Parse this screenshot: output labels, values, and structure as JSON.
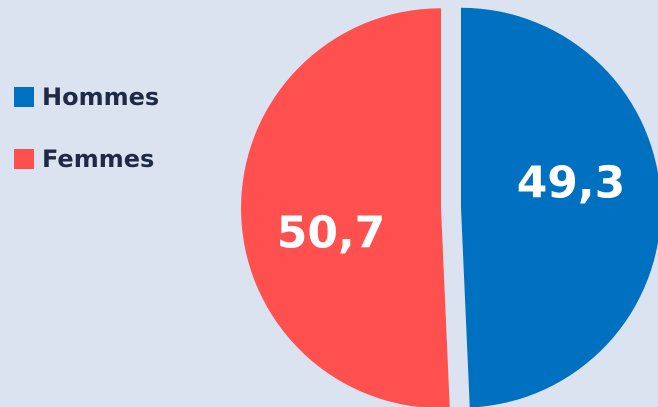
{
  "chart_data": {
    "type": "pie",
    "title": "",
    "legend_position": "left",
    "series": [
      {
        "name": "Hommes",
        "value": 49.3,
        "label": "49,3",
        "color": "#0070c0"
      },
      {
        "name": "Femmes",
        "value": 50.7,
        "label": "50,7",
        "color": "#ff5050"
      }
    ]
  },
  "background_color": "#dbe3f1"
}
